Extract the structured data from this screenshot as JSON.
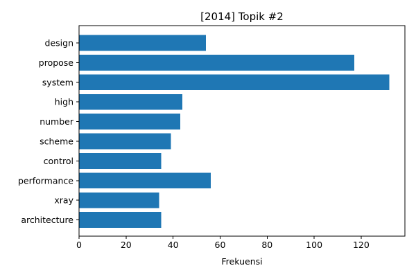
{
  "chart_data": {
    "type": "bar",
    "orientation": "horizontal",
    "title": "[2014] Topik #2",
    "xlabel": "Frekuensi",
    "ylabel": "",
    "categories": [
      "design",
      "propose",
      "system",
      "high",
      "number",
      "scheme",
      "control",
      "performance",
      "xray",
      "architecture"
    ],
    "values": [
      54,
      117,
      132,
      44,
      43,
      39,
      35,
      56,
      34,
      35
    ],
    "xlim": [
      0,
      138.6
    ],
    "xticks": [
      0,
      20,
      40,
      60,
      80,
      100,
      120
    ],
    "bar_color": "#1f77b4",
    "grid": false
  }
}
